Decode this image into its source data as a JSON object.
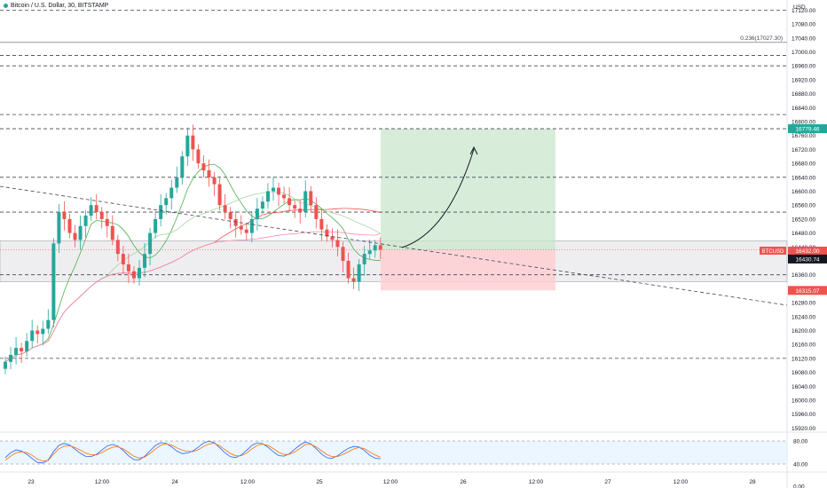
{
  "header": {
    "title": "Bitcoin / U.S. Dollar, 30, BITSTAMP"
  },
  "price_axis": {
    "currency": "USD",
    "ticks": [
      "17120.00",
      "17080.00",
      "17040.00",
      "17000.00",
      "16960.00",
      "16920.00",
      "16880.00",
      "16840.00",
      "16800.00",
      "16760.00",
      "16720.00",
      "16680.00",
      "16640.00",
      "16600.00",
      "16560.00",
      "16520.00",
      "16480.00",
      "16440.00",
      "16400.00",
      "16360.00",
      "16320.00",
      "16280.00",
      "16240.00",
      "16200.00",
      "16160.00",
      "16120.00",
      "16080.00",
      "16040.00",
      "16000.00",
      "15960.00",
      "15920.00"
    ]
  },
  "time_axis": {
    "ticks": [
      "23",
      "12:00",
      "24",
      "12:00",
      "25",
      "12:00",
      "26",
      "12:00",
      "27",
      "12:00",
      "28"
    ]
  },
  "rsi_axis": {
    "ticks": [
      "80.00",
      "40.00",
      "0.00"
    ]
  },
  "labels": {
    "fib": "0.236(17027.30)",
    "target": "16779.46",
    "symbol": "BTCUSD",
    "last_price": "16432.00",
    "countdown": "05:31",
    "entry": "16430.74",
    "stop": "16315.07"
  },
  "colors": {
    "up": "#26a69a",
    "down": "#ef5350",
    "target_zone": "#c8e6c9",
    "stop_zone": "#ffcdd2",
    "support_band": "#d9d9de"
  },
  "chart_data": {
    "type": "candlestick",
    "symbol": "Bitcoin / U.S. Dollar",
    "interval": "30",
    "exchange": "BITSTAMP",
    "ylim": [
      15890,
      17140
    ],
    "horizontal_levels": [
      17120,
      17027.3,
      16990,
      16960,
      16820,
      16779.46,
      16640,
      16540,
      16360,
      16120
    ],
    "position": {
      "type": "long",
      "entry": 16430.74,
      "target": 16779.46,
      "stop": 16315.07
    },
    "support_band": [
      16340,
      16440
    ],
    "approx_candles_close": [
      16110,
      16130,
      16150,
      16140,
      16170,
      16200,
      16190,
      16205,
      16230,
      16450,
      16540,
      16520,
      16480,
      16460,
      16500,
      16530,
      16560,
      16540,
      16520,
      16500,
      16460,
      16420,
      16390,
      16370,
      16350,
      16380,
      16420,
      16480,
      16520,
      16560,
      16580,
      16610,
      16640,
      16700,
      16760,
      16720,
      16680,
      16660,
      16640,
      16620,
      16560,
      16540,
      16520,
      16500,
      16490,
      16480,
      16520,
      16550,
      16570,
      16600,
      16610,
      16590,
      16580,
      16560,
      16550,
      16540,
      16600,
      16560,
      16520,
      16490,
      16470,
      16460,
      16440,
      16400,
      16350,
      16340,
      16390,
      16420,
      16430,
      16445,
      16432
    ],
    "rsi_levels": [
      80,
      40
    ]
  }
}
